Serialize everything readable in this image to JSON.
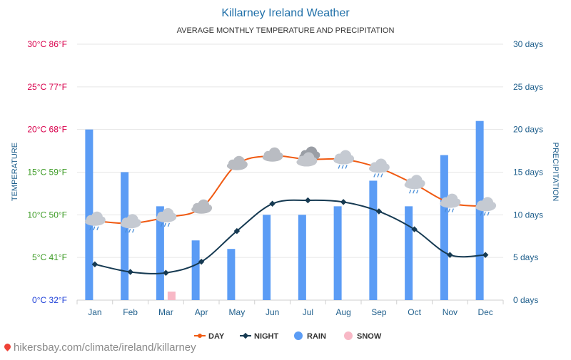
{
  "colors": {
    "title": "#1f6fa8",
    "day": "#f05a12",
    "night": "#163a52",
    "rain": "#5b9cf5",
    "snow": "#f8b8c6",
    "grid": "#e6e6e6",
    "temp_red": "#d9004c",
    "temp_green": "#3a9a22",
    "temp_blue": "#1d3fd8",
    "precip_axis": "#1f5f8c",
    "month_label": "#1f5f8c",
    "legend_text": "#333333",
    "footer": "#8a8a8a"
  },
  "chart_data": {
    "type": "bar+line",
    "title": "Killarney Ireland Weather",
    "subtitle": "AVERAGE MONTHLY TEMPERATURE AND PRECIPITATION",
    "ylabel_left": "TEMPERATURE",
    "ylabel_right": "PRECIPITATION",
    "categories": [
      "Jan",
      "Feb",
      "Mar",
      "Apr",
      "May",
      "Jun",
      "Jul",
      "Aug",
      "Sep",
      "Oct",
      "Nov",
      "Dec"
    ],
    "temp_axis": {
      "range_c": [
        0,
        30
      ],
      "ticks": [
        {
          "value": 0,
          "label": "0°C 32°F",
          "tone": "blue"
        },
        {
          "value": 5,
          "label": "5°C 41°F",
          "tone": "green"
        },
        {
          "value": 10,
          "label": "10°C 50°F",
          "tone": "green"
        },
        {
          "value": 15,
          "label": "15°C 59°F",
          "tone": "green"
        },
        {
          "value": 20,
          "label": "20°C 68°F",
          "tone": "red"
        },
        {
          "value": 25,
          "label": "25°C 77°F",
          "tone": "red"
        },
        {
          "value": 30,
          "label": "30°C 86°F",
          "tone": "red"
        }
      ]
    },
    "precip_axis": {
      "range_days": [
        0,
        30
      ],
      "ticks": [
        {
          "value": 0,
          "label": "0 days"
        },
        {
          "value": 5,
          "label": "5 days"
        },
        {
          "value": 10,
          "label": "10 days"
        },
        {
          "value": 15,
          "label": "15 days"
        },
        {
          "value": 20,
          "label": "20 days"
        },
        {
          "value": 25,
          "label": "25 days"
        },
        {
          "value": 30,
          "label": "30 days"
        }
      ]
    },
    "series": [
      {
        "name": "DAY",
        "kind": "line",
        "axis": "temp",
        "values": [
          9.3,
          9.0,
          9.7,
          10.8,
          15.9,
          16.9,
          16.5,
          16.5,
          15.5,
          13.6,
          11.4,
          11.0
        ]
      },
      {
        "name": "NIGHT",
        "kind": "line",
        "axis": "temp",
        "values": [
          4.2,
          3.3,
          3.2,
          4.5,
          8.1,
          11.3,
          11.7,
          11.5,
          10.4,
          8.3,
          5.3,
          5.3
        ]
      },
      {
        "name": "RAIN",
        "kind": "bar",
        "axis": "precip",
        "values": [
          20,
          15,
          11,
          7,
          6,
          10,
          10,
          11,
          14,
          11,
          17,
          21
        ]
      },
      {
        "name": "SNOW",
        "kind": "bar",
        "axis": "precip",
        "values": [
          0,
          0,
          1,
          0,
          0,
          0,
          0,
          0,
          0,
          0,
          0,
          0
        ]
      }
    ],
    "weather_icons": [
      "rain-cloud",
      "rain-cloud",
      "rain-cloud",
      "partly-sunny",
      "partly-sunny",
      "partly-sunny",
      "cloudy",
      "rain-cloud",
      "rain-cloud",
      "rain-cloud",
      "rain-cloud",
      "rain-cloud"
    ],
    "legend": [
      "DAY",
      "NIGHT",
      "RAIN",
      "SNOW"
    ],
    "legend_position": "bottom-center",
    "grid": true
  },
  "footer": {
    "link_text": "hikersbay.com/climate/ireland/killarney"
  }
}
